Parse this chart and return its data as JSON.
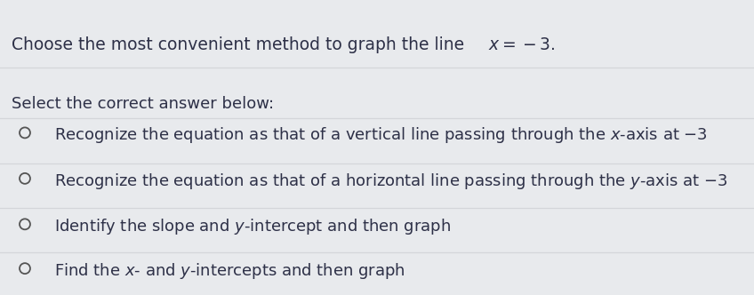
{
  "title_plain": "Choose the most convenient method to graph the line ",
  "title_math": "$x = -3$.",
  "subtitle": "Select the correct answer below:",
  "options": [
    [
      "Recognize the equation as that of a vertical line passing through the ",
      "$x$",
      "-axis at −3"
    ],
    [
      "Recognize the equation as that of a horizontal line passing through the ",
      "$y$",
      "-axis at −3"
    ],
    [
      "Identify the slope and ",
      "$y$",
      "-intercept and then graph"
    ],
    [
      "Find the ",
      "$x$",
      "- and ",
      "$y$",
      "-intercepts and then graph"
    ]
  ],
  "background_color": "#e8eaed",
  "text_color": "#2d3047",
  "title_fontsize": 13.5,
  "subtitle_fontsize": 13,
  "option_fontsize": 13,
  "circle_color": "#555555",
  "divider_color": "#c8cace"
}
